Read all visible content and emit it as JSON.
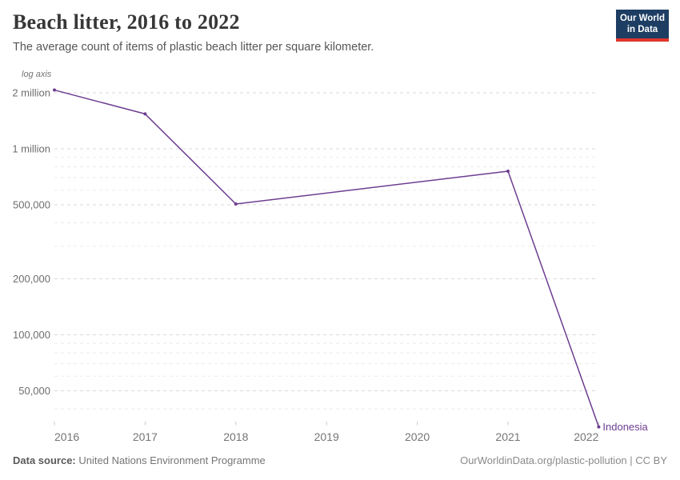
{
  "header": {
    "title": "Beach litter, 2016 to 2022",
    "subtitle": "The average count of items of plastic beach litter per square kilometer.",
    "logo": {
      "line1": "Our World",
      "line2": "in Data",
      "bg_color": "#1d3d63",
      "accent_color": "#e0352b"
    }
  },
  "chart_data": {
    "type": "line",
    "title": "Beach litter, 2016 to 2022",
    "scale_note": "log axis",
    "x": {
      "label": "",
      "ticks": [
        2016,
        2017,
        2018,
        2019,
        2020,
        2021,
        2022
      ],
      "range": [
        2016,
        2022
      ]
    },
    "y": {
      "label": "",
      "scale": "log",
      "range": [
        32000,
        2100000
      ],
      "major_ticks": [
        {
          "value": 2000000,
          "label": "2 million"
        },
        {
          "value": 1000000,
          "label": "1 million"
        },
        {
          "value": 500000,
          "label": "500,000"
        },
        {
          "value": 200000,
          "label": "200,000"
        },
        {
          "value": 100000,
          "label": "100,000"
        },
        {
          "value": 50000,
          "label": "50,000"
        }
      ],
      "minor_gridlines": [
        900000,
        800000,
        700000,
        600000,
        400000,
        300000,
        90000,
        80000,
        70000,
        60000,
        40000
      ]
    },
    "grid": "dashed",
    "legend_position": "end-of-line",
    "series": [
      {
        "name": "Indonesia",
        "color": "#6d3e91",
        "points": [
          {
            "year": 2016,
            "value": 2070000
          },
          {
            "year": 2017,
            "value": 1540000
          },
          {
            "year": 2018,
            "value": 505000
          },
          {
            "year": 2021,
            "value": 758000
          },
          {
            "year": 2022,
            "value": 32000
          }
        ]
      }
    ]
  },
  "footer": {
    "source_label": "Data source:",
    "source_value": "United Nations Environment Programme",
    "credit": "OurWorldinData.org/plastic-pollution | CC BY"
  }
}
